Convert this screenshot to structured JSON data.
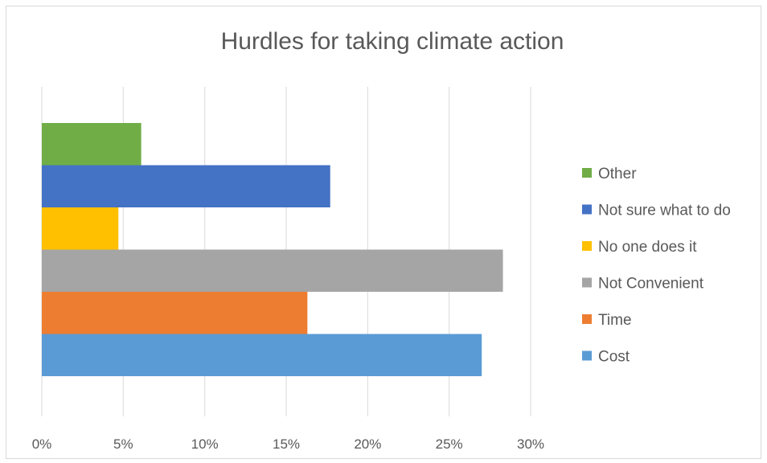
{
  "chart_data": {
    "type": "bar",
    "orientation": "horizontal",
    "title": "Hurdles for taking climate action",
    "categories": [
      "Cost",
      "Time",
      "Not Convenient",
      "No one does it",
      "Not sure what to do",
      "Other"
    ],
    "values": [
      0.27,
      0.163,
      0.283,
      0.047,
      0.177,
      0.061
    ],
    "colors": [
      "#5b9bd5",
      "#ed7d31",
      "#a5a5a5",
      "#ffc000",
      "#4472c4",
      "#70ad47"
    ],
    "xlim": [
      0,
      0.3
    ],
    "x_ticks": [
      0,
      0.05,
      0.1,
      0.15,
      0.2,
      0.25,
      0.3
    ],
    "x_tick_labels": [
      "0%",
      "5%",
      "10%",
      "15%",
      "20%",
      "25%",
      "30%"
    ],
    "grid": "vertical",
    "legend_position": "right",
    "legend": [
      "Other",
      "Not sure what to do",
      "No one does it",
      "Not Convenient",
      "Time",
      "Cost"
    ]
  }
}
